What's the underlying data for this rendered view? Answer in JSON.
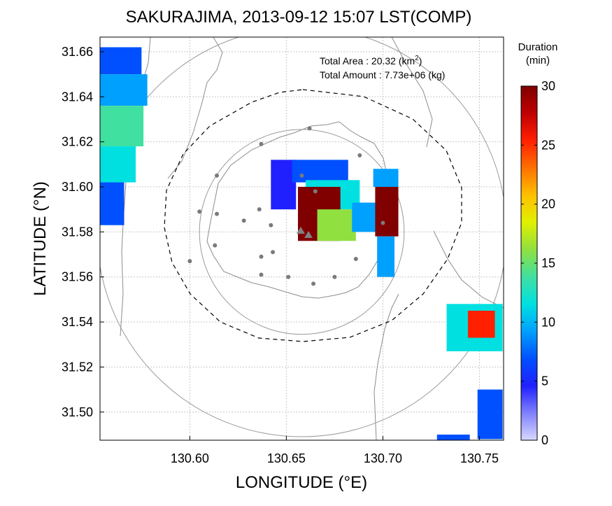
{
  "chart_data": {
    "type": "heatmap",
    "title": "SAKURAJIMA, 2013-09-12 15:07 LST(COMP)",
    "xlabel": "LONGITUDE (°E)",
    "ylabel": "LATITUDE (°N)",
    "xlim": [
      130.5535,
      130.7625
    ],
    "ylim": [
      31.4875,
      31.6665
    ],
    "x_ticks": [
      {
        "value": 130.6,
        "label": "130.60"
      },
      {
        "value": 130.65,
        "label": "130.65"
      },
      {
        "value": 130.7,
        "label": "130.70"
      },
      {
        "value": 130.75,
        "label": "130.75"
      }
    ],
    "y_ticks": [
      {
        "value": 31.5,
        "label": "31.50"
      },
      {
        "value": 31.52,
        "label": "31.52"
      },
      {
        "value": 31.54,
        "label": "31.54"
      },
      {
        "value": 31.56,
        "label": "31.56"
      },
      {
        "value": 31.58,
        "label": "31.58"
      },
      {
        "value": 31.6,
        "label": "31.60"
      },
      {
        "value": 31.62,
        "label": "31.62"
      },
      {
        "value": 31.64,
        "label": "31.64"
      },
      {
        "value": 31.66,
        "label": "31.66"
      }
    ],
    "grid": true,
    "annotation": {
      "area_label": "Total Area   : 20.32 (km",
      "area_sup": "2",
      "area_close": ")",
      "amount_label": "Total Amount : 7.73e+06 (kg)"
    },
    "colorbar": {
      "title_line1": "Duration",
      "title_line2": "(min)",
      "range": [
        0,
        30
      ],
      "ticks": [
        {
          "value": 0,
          "label": "0"
        },
        {
          "value": 5,
          "label": "5"
        },
        {
          "value": 10,
          "label": "10"
        },
        {
          "value": 15,
          "label": "15"
        },
        {
          "value": 20,
          "label": "20"
        },
        {
          "value": 25,
          "label": "25"
        },
        {
          "value": 30,
          "label": "30"
        }
      ],
      "colors": [
        "#d8d8ff",
        "#8080ff",
        "#2020ff",
        "#0050ff",
        "#00a0ff",
        "#00e0e0",
        "#40e0a0",
        "#90e040",
        "#e0f000",
        "#ffc000",
        "#ff7000",
        "#ff2000",
        "#c00000",
        "#800000"
      ]
    },
    "vent": {
      "lon": 130.658,
      "lat": 31.581
    },
    "circles": [
      {
        "lon": 130.658,
        "lat": 31.58,
        "radius_deg_lon": 0.106,
        "style": "solid"
      },
      {
        "lon": 130.658,
        "lat": 31.58,
        "radius_deg_lon": 0.053,
        "style": "solid"
      }
    ],
    "stations": [
      [
        130.662,
        31.626
      ],
      [
        130.637,
        31.619
      ],
      [
        130.688,
        31.614
      ],
      [
        130.614,
        31.605
      ],
      [
        130.658,
        31.605
      ],
      [
        130.665,
        31.598
      ],
      [
        130.636,
        31.59
      ],
      [
        130.605,
        31.589
      ],
      [
        130.614,
        31.588
      ],
      [
        130.628,
        31.585
      ],
      [
        130.642,
        31.583
      ],
      [
        130.7,
        31.584
      ],
      [
        130.613,
        31.574
      ],
      [
        130.643,
        31.571
      ],
      [
        130.637,
        31.569
      ],
      [
        130.686,
        31.568
      ],
      [
        130.6,
        31.567
      ],
      [
        130.637,
        31.561
      ],
      [
        130.651,
        31.56
      ],
      [
        130.675,
        31.56
      ],
      [
        130.664,
        31.557
      ]
    ],
    "plumes": [
      {
        "name": "",
        "cells": [
          {
            "lon0": 130.553,
            "lon1": 130.575,
            "lat0": 31.65,
            "lat1": 31.662,
            "v": 6
          },
          {
            "lon0": 130.553,
            "lon1": 130.578,
            "lat0": 31.636,
            "lat1": 31.65,
            "v": 9
          },
          {
            "lon0": 130.553,
            "lon1": 130.576,
            "lat0": 31.618,
            "lat1": 31.636,
            "v": 13
          },
          {
            "lon0": 130.553,
            "lon1": 130.572,
            "lat0": 31.602,
            "lat1": 31.618,
            "v": 11
          },
          {
            "lon0": 130.553,
            "lon1": 130.566,
            "lat0": 31.583,
            "lat1": 31.602,
            "v": 7
          }
        ]
      },
      {
        "name": "",
        "cells": [
          {
            "lon0": 130.642,
            "lon1": 130.655,
            "lat0": 31.59,
            "lat1": 31.612,
            "v": 5
          },
          {
            "lon0": 130.653,
            "lon1": 130.682,
            "lat0": 31.602,
            "lat1": 31.612,
            "v": 7
          },
          {
            "lon0": 130.66,
            "lon1": 130.688,
            "lat0": 31.59,
            "lat1": 31.603,
            "v": 11
          },
          {
            "lon0": 130.656,
            "lon1": 130.678,
            "lat0": 31.576,
            "lat1": 31.6,
            "v": 30
          },
          {
            "lon0": 130.666,
            "lon1": 130.686,
            "lat0": 31.576,
            "lat1": 31.59,
            "v": 15
          },
          {
            "lon0": 130.684,
            "lon1": 130.699,
            "lat0": 31.58,
            "lat1": 31.593,
            "v": 9
          },
          {
            "lon0": 130.696,
            "lon1": 130.708,
            "lat0": 31.578,
            "lat1": 31.6,
            "v": 30
          },
          {
            "lon0": 130.695,
            "lon1": 130.708,
            "lat0": 31.6,
            "lat1": 31.608,
            "v": 9
          },
          {
            "lon0": 130.697,
            "lon1": 130.706,
            "lat0": 31.56,
            "lat1": 31.578,
            "v": 9
          }
        ]
      },
      {
        "name": "",
        "cells": [
          {
            "lon0": 130.733,
            "lon1": 130.762,
            "lat0": 31.527,
            "lat1": 31.548,
            "v": 12
          },
          {
            "lon0": 130.744,
            "lon1": 130.758,
            "lat0": 31.533,
            "lat1": 31.545,
            "v": 25
          },
          {
            "lon0": 130.749,
            "lon1": 130.762,
            "lat0": 31.488,
            "lat1": 31.51,
            "v": 8
          },
          {
            "lon0": 130.728,
            "lon1": 130.745,
            "lat0": 31.487,
            "lat1": 31.49,
            "v": 6
          }
        ]
      }
    ]
  }
}
